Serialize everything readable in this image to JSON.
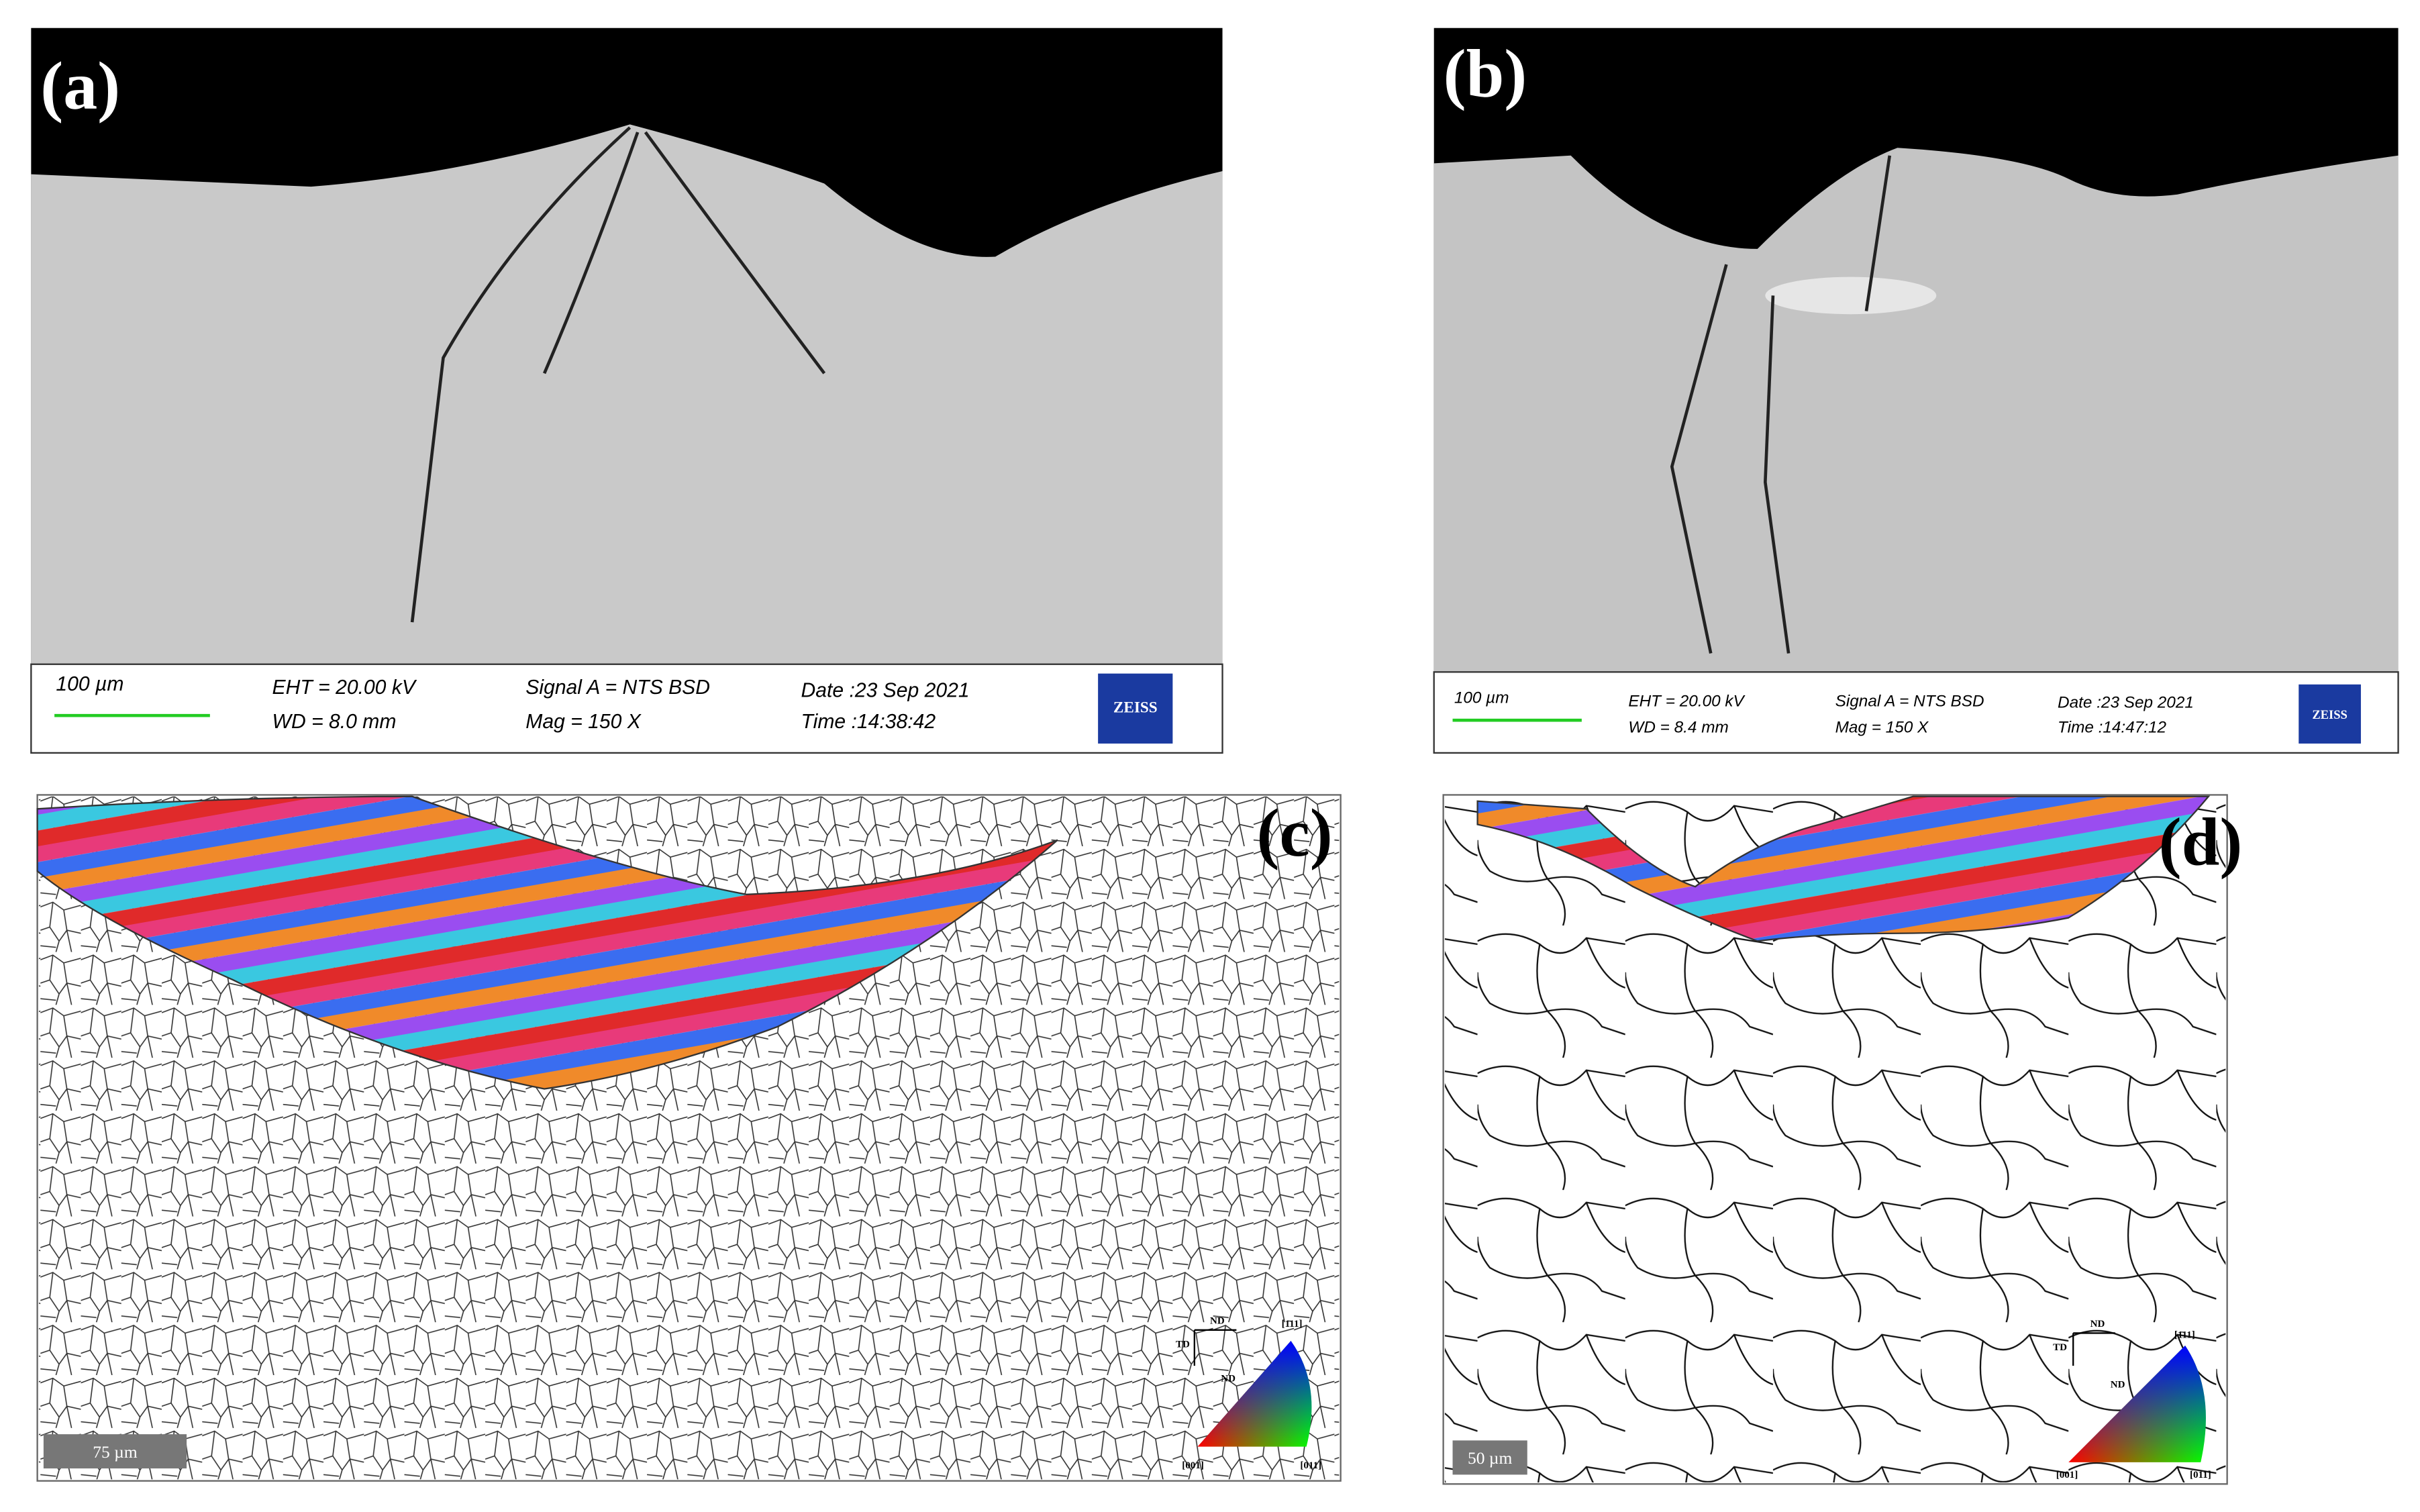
{
  "panels": [
    {
      "label": "(a)",
      "info": {
        "scale_bar": "100 µm",
        "eht": "EHT = 20.00 kV",
        "wd": "WD =  8.0 mm",
        "signal": "Signal A = NTS BSD",
        "mag": "Mag =    150 X",
        "date": "Date :23 Sep 2021",
        "time": "Time :14:38:42",
        "logo": "ZEISS"
      }
    },
    {
      "label": "(b)",
      "info": {
        "scale_bar": "100 µm",
        "eht": "EHT = 20.00 kV",
        "wd": "WD =  8.4 mm",
        "signal": "Signal A = NTS BSD",
        "mag": "Mag =    150 X",
        "date": "Date :23 Sep 2021",
        "time": "Time :14:47:12",
        "logo": "ZEISS"
      }
    },
    {
      "label": "(c)",
      "scale_bar": "75 µm",
      "legend": {
        "nd": "ND",
        "td": "TD",
        "nd_center": "ND",
        "corner_001": "[001]",
        "corner_011": "[011]",
        "corner_111": "[1̄11]"
      }
    },
    {
      "label": "(d)",
      "scale_bar": "50 µm",
      "legend": {
        "nd": "ND",
        "td": "TD",
        "nd_center": "ND",
        "corner_001": "[001]",
        "corner_011": "[011]",
        "corner_111": "[1̄11]"
      }
    }
  ]
}
